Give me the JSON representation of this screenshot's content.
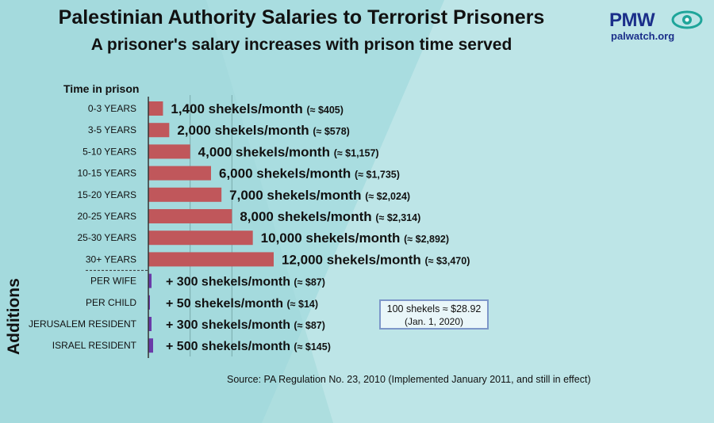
{
  "header": {
    "title": "Palestinian Authority Salaries to Terrorist Prisoners",
    "subtitle": "A prisoner's salary increases with prison time served"
  },
  "logo": {
    "main": "PMW",
    "sub": "palwatch.org",
    "icon": "eye-icon"
  },
  "colors": {
    "background": "#a8dcdf",
    "bar": "#c0575b",
    "addition_bar": "#6a3aa8",
    "text": "#111111",
    "logo": "#1b2f8a"
  },
  "conversion": {
    "line1": "100 shekels ≈ $28.92",
    "line2": "(Jan. 1, 2020)"
  },
  "source": "Source: PA Regulation No. 23, 2010 (Implemented January 2011, and still in effect)",
  "chart_data": {
    "type": "bar",
    "orientation": "horizontal",
    "title": "Palestinian Authority Salaries to Terrorist Prisoners",
    "subtitle": "A prisoner's salary increases with prison time served",
    "category_header": "Time in prison",
    "additions_label": "Additions",
    "categories": [
      "0-3 YEARS",
      "3-5 YEARS",
      "5-10 YEARS",
      "10-15 YEARS",
      "15-20 YEARS",
      "20-25 YEARS",
      "25-30 YEARS",
      "30+ YEARS"
    ],
    "values": [
      1400,
      2000,
      4000,
      6000,
      7000,
      8000,
      10000,
      12000
    ],
    "labels": [
      "1,400 shekels/month",
      "2,000 shekels/month",
      "4,000 shekels/month",
      "6,000 shekels/month",
      "7,000 shekels/month",
      "8,000 shekels/month",
      "10,000 shekels/month",
      "12,000 shekels/month"
    ],
    "usd": [
      "(≈ $405)",
      "(≈ $578)",
      "(≈ $1,157)",
      "(≈ $1,735)",
      "(≈ $2,024)",
      "(≈ $2,314)",
      "(≈ $2,892)",
      "(≈ $3,470)"
    ],
    "additions": {
      "categories": [
        "PER WIFE",
        "PER CHILD",
        "JERUSALEM RESIDENT",
        "ISRAEL RESIDENT"
      ],
      "values": [
        300,
        50,
        300,
        500
      ],
      "labels": [
        "+ 300 shekels/month",
        "+ 50 shekels/month",
        "+ 300 shekels/month",
        "+ 500 shekels/month"
      ],
      "usd": [
        "(≈ $87)",
        "(≈ $14)",
        "(≈ $87)",
        "(≈ $145)"
      ]
    },
    "xlim": [
      0,
      12000
    ],
    "grid": true
  }
}
